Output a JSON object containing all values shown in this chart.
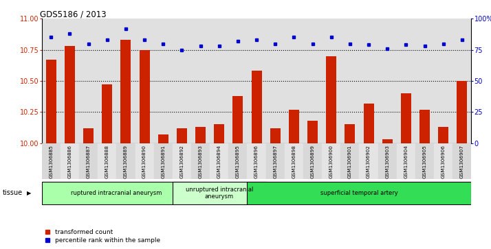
{
  "title": "GDS5186 / 2013",
  "samples": [
    "GSM1306885",
    "GSM1306886",
    "GSM1306887",
    "GSM1306888",
    "GSM1306889",
    "GSM1306890",
    "GSM1306891",
    "GSM1306892",
    "GSM1306893",
    "GSM1306894",
    "GSM1306895",
    "GSM1306896",
    "GSM1306897",
    "GSM1306898",
    "GSM1306899",
    "GSM1306900",
    "GSM1306901",
    "GSM1306902",
    "GSM1306903",
    "GSM1306904",
    "GSM1306905",
    "GSM1306906",
    "GSM1306907"
  ],
  "transformed_count": [
    10.67,
    10.78,
    10.12,
    10.47,
    10.83,
    10.75,
    10.07,
    10.12,
    10.13,
    10.15,
    10.38,
    10.58,
    10.12,
    10.27,
    10.18,
    10.7,
    10.15,
    10.32,
    10.03,
    10.4,
    10.27,
    10.13,
    10.5
  ],
  "percentile_rank": [
    85,
    88,
    80,
    83,
    92,
    83,
    80,
    75,
    78,
    78,
    82,
    83,
    80,
    85,
    80,
    85,
    80,
    79,
    76,
    79,
    78,
    80,
    83
  ],
  "ylim_left": [
    10,
    11
  ],
  "ylim_right": [
    0,
    100
  ],
  "yticks_left": [
    10,
    10.25,
    10.5,
    10.75,
    11
  ],
  "yticks_right": [
    0,
    25,
    50,
    75,
    100
  ],
  "ytick_labels_right": [
    "0",
    "25",
    "50",
    "75",
    "100%"
  ],
  "bar_color": "#cc2200",
  "dot_color": "#0000cc",
  "tissue_groups": [
    {
      "label": "ruptured intracranial aneurysm",
      "start": 0,
      "end": 7,
      "color": "#aaffaa"
    },
    {
      "label": "unruptured intracranial\naneurysm",
      "start": 7,
      "end": 11,
      "color": "#ccffcc"
    },
    {
      "label": "superficial temporal artery",
      "start": 11,
      "end": 22,
      "color": "#33dd55"
    }
  ],
  "legend_bar_label": "transformed count",
  "legend_dot_label": "percentile rank within the sample",
  "xlabel_tissue": "tissue",
  "bg_color": "#e0e0e0",
  "dot_line_y": [
    10.25,
    10.5,
    10.75
  ]
}
